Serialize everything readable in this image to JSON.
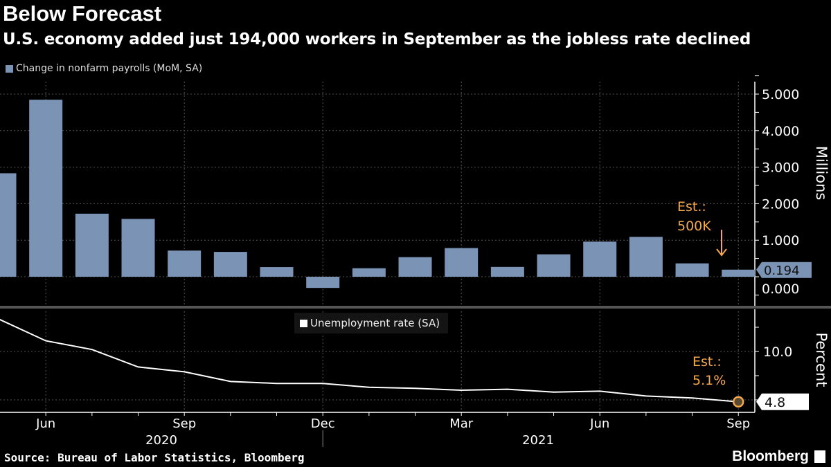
{
  "header": {
    "title": "Below Forecast",
    "subtitle": "U.S. economy added just 194,000 workers in September as the jobless rate declined"
  },
  "footer": {
    "source": "Source: Bureau of Labor Statistics, Bloomberg",
    "brand": "Bloomberg"
  },
  "chart_data": [
    {
      "type": "bar",
      "title": "",
      "legend": "Change in nonfarm payrolls (MoM, SA)",
      "color": "#7b93b5",
      "categories": [
        "May 2020",
        "Jun 2020",
        "Jul 2020",
        "Aug 2020",
        "Sep 2020",
        "Oct 2020",
        "Nov 2020",
        "Dec 2020",
        "Jan 2021",
        "Feb 2021",
        "Mar 2021",
        "Apr 2021",
        "May 2021",
        "Jun 2021",
        "Jul 2021",
        "Aug 2021",
        "Sep 2021"
      ],
      "values": [
        2.833,
        4.846,
        1.726,
        1.583,
        0.716,
        0.68,
        0.264,
        -0.306,
        0.233,
        0.536,
        0.785,
        0.269,
        0.614,
        0.962,
        1.091,
        0.366,
        0.194
      ],
      "ylabel": "Millions",
      "ylim": [
        -0.8,
        5.2
      ],
      "yticks": [
        "0.000",
        "1.000",
        "2.000",
        "3.000",
        "4.000",
        "5.000"
      ],
      "last_value_label": "0.194",
      "annotation": {
        "line1": "Est.:",
        "line2": "500K",
        "color": "#f5a94d"
      }
    },
    {
      "type": "line",
      "legend": "Unemployment rate (SA)",
      "color": "#ffffff",
      "categories": [
        "May 2020",
        "Jun 2020",
        "Jul 2020",
        "Aug 2020",
        "Sep 2020",
        "Oct 2020",
        "Nov 2020",
        "Dec 2020",
        "Jan 2021",
        "Feb 2021",
        "Mar 2021",
        "Apr 2021",
        "May 2021",
        "Jun 2021",
        "Jul 2021",
        "Aug 2021",
        "Sep 2021"
      ],
      "values": [
        13.3,
        11.1,
        10.2,
        8.4,
        7.9,
        6.9,
        6.7,
        6.7,
        6.3,
        6.2,
        6.0,
        6.1,
        5.8,
        5.9,
        5.4,
        5.2,
        4.8
      ],
      "ylabel": "Percent",
      "yticks": [
        "10.0"
      ],
      "last_value_label": "4.8",
      "annotation": {
        "line1": "Est.:",
        "line2": "5.1%",
        "color": "#f5a94d"
      }
    }
  ],
  "x_axis": {
    "month_labels": [
      {
        "i": 1,
        "label": "Jun"
      },
      {
        "i": 4,
        "label": "Sep"
      },
      {
        "i": 7,
        "label": "Dec"
      },
      {
        "i": 10,
        "label": "Mar"
      },
      {
        "i": 13,
        "label": "Jun"
      },
      {
        "i": 16,
        "label": "Sep"
      }
    ],
    "years": [
      "2020",
      "2021"
    ]
  }
}
